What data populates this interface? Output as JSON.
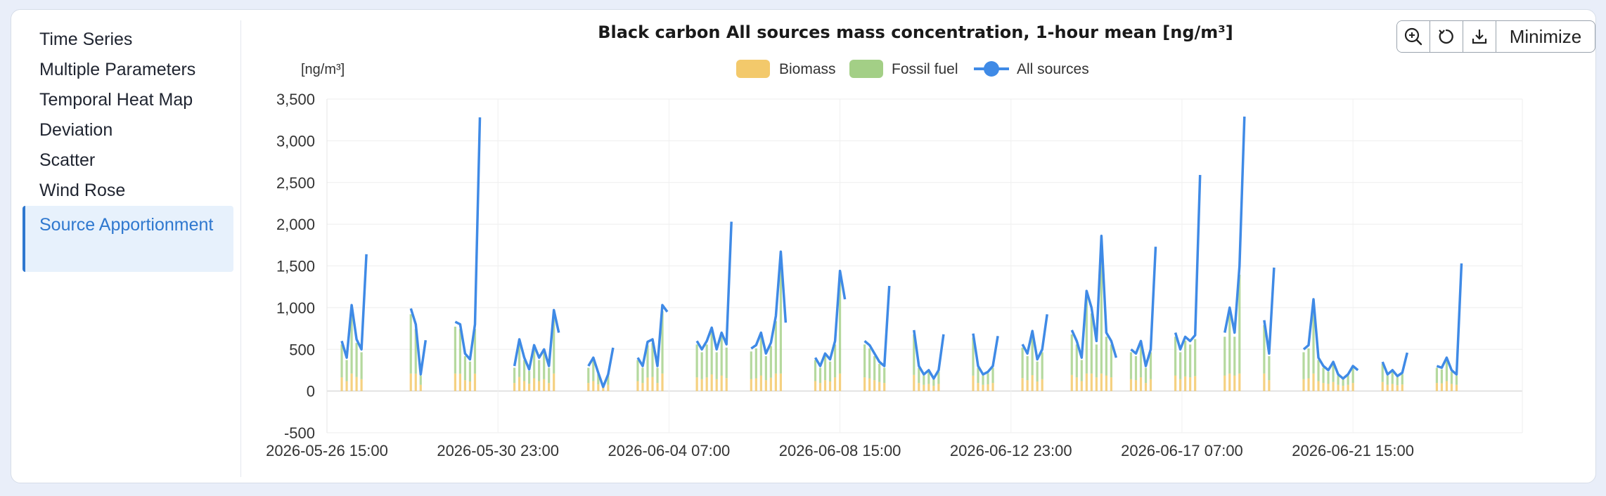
{
  "sidebar": {
    "items": [
      {
        "label": "Time Series",
        "active": false
      },
      {
        "label": "Multiple Parameters",
        "active": false
      },
      {
        "label": "Temporal Heat Map",
        "active": false
      },
      {
        "label": "Deviation",
        "active": false
      },
      {
        "label": "Scatter",
        "active": false
      },
      {
        "label": "Wind Rose",
        "active": false
      },
      {
        "label": "Source Apportionment",
        "active": true
      }
    ]
  },
  "toolbar": {
    "zoom_icon": "zoom-in-icon",
    "reset_icon": "reset-icon",
    "download_icon": "download-icon",
    "minimize_label": "Minimize"
  },
  "colors": {
    "biomass": "#f3c96b",
    "fossil": "#a3cf86",
    "all_sources": "#3f8ae6"
  },
  "chart_data": {
    "type": "bar",
    "title": "Black carbon All sources mass concentration, 1-hour mean [ng/m³]",
    "ylabel": "[ng/m³]",
    "ylim": [
      -500,
      3500
    ],
    "y_ticks": [
      3500,
      3000,
      2500,
      2000,
      1500,
      1000,
      500,
      0,
      -500
    ],
    "y_tick_labels": [
      "3,500",
      "3,000",
      "2,500",
      "2,000",
      "1,500",
      "1,000",
      "500",
      "0",
      "-500"
    ],
    "x_tick_labels": [
      "2026-05-26 15:00",
      "2026-05-30 23:00",
      "2026-06-04 07:00",
      "2026-06-08 15:00",
      "2026-06-12 23:00",
      "2026-06-17 07:00",
      "2026-06-21 15:00"
    ],
    "x_range": [
      "2026-05-26 15:00",
      "2026-06-25 22:00"
    ],
    "stacked": true,
    "grid": true,
    "legend_position": "top-center",
    "series": [
      {
        "name": "Biomass",
        "type": "bar",
        "color": "#f3c96b"
      },
      {
        "name": "Fossil fuel",
        "type": "bar",
        "color": "#a3cf86"
      },
      {
        "name": "All sources",
        "type": "line",
        "color": "#3f8ae6",
        "points": [
          [
            "2026-05-27 00:00",
            600
          ],
          [
            "2026-05-27 03:00",
            400
          ],
          [
            "2026-05-27 06:00",
            1030
          ],
          [
            "2026-05-27 09:00",
            620
          ],
          [
            "2026-05-27 12:00",
            500
          ],
          [
            "2026-05-27 15:00",
            1640
          ],
          [
            "2026-05-27 18:00",
            null
          ],
          [
            "2026-05-28 18:00",
            990
          ],
          [
            "2026-05-28 21:00",
            800
          ],
          [
            "2026-05-29 00:00",
            200
          ],
          [
            "2026-05-29 03:00",
            610
          ],
          [
            "2026-05-29 06:00",
            null
          ],
          [
            "2026-05-29 21:00",
            830
          ],
          [
            "2026-05-30 00:00",
            800
          ],
          [
            "2026-05-30 03:00",
            450
          ],
          [
            "2026-05-30 06:00",
            380
          ],
          [
            "2026-05-30 09:00",
            800
          ],
          [
            "2026-05-30 12:00",
            3280
          ],
          [
            "2026-05-30 15:00",
            null
          ],
          [
            "2026-05-31 09:00",
            300
          ],
          [
            "2026-05-31 12:00",
            620
          ],
          [
            "2026-05-31 15:00",
            400
          ],
          [
            "2026-05-31 18:00",
            260
          ],
          [
            "2026-05-31 21:00",
            550
          ],
          [
            "2026-06-01 00:00",
            400
          ],
          [
            "2026-06-01 03:00",
            500
          ],
          [
            "2026-06-01 06:00",
            300
          ],
          [
            "2026-06-01 09:00",
            970
          ],
          [
            "2026-06-01 12:00",
            700
          ],
          [
            "2026-06-01 15:00",
            null
          ],
          [
            "2026-06-02 06:00",
            300
          ],
          [
            "2026-06-02 09:00",
            400
          ],
          [
            "2026-06-02 12:00",
            220
          ],
          [
            "2026-06-02 15:00",
            50
          ],
          [
            "2026-06-02 18:00",
            200
          ],
          [
            "2026-06-02 21:00",
            520
          ],
          [
            "2026-06-03 00:00",
            null
          ],
          [
            "2026-06-03 12:00",
            400
          ],
          [
            "2026-06-03 15:00",
            300
          ],
          [
            "2026-06-03 18:00",
            590
          ],
          [
            "2026-06-03 21:00",
            620
          ],
          [
            "2026-06-04 00:00",
            300
          ],
          [
            "2026-06-04 03:00",
            1030
          ],
          [
            "2026-06-04 06:00",
            950
          ],
          [
            "2026-06-04 09:00",
            null
          ],
          [
            "2026-06-05 00:00",
            600
          ],
          [
            "2026-06-05 03:00",
            500
          ],
          [
            "2026-06-05 06:00",
            600
          ],
          [
            "2026-06-05 09:00",
            760
          ],
          [
            "2026-06-05 12:00",
            500
          ],
          [
            "2026-06-05 15:00",
            700
          ],
          [
            "2026-06-05 18:00",
            560
          ],
          [
            "2026-06-05 21:00",
            2030
          ],
          [
            "2026-06-06 00:00",
            null
          ],
          [
            "2026-06-06 09:00",
            510
          ],
          [
            "2026-06-06 12:00",
            550
          ],
          [
            "2026-06-06 15:00",
            700
          ],
          [
            "2026-06-06 18:00",
            450
          ],
          [
            "2026-06-06 21:00",
            580
          ],
          [
            "2026-06-07 00:00",
            900
          ],
          [
            "2026-06-07 03:00",
            1670
          ],
          [
            "2026-06-07 06:00",
            820
          ],
          [
            "2026-06-07 09:00",
            null
          ],
          [
            "2026-06-08 00:00",
            400
          ],
          [
            "2026-06-08 03:00",
            300
          ],
          [
            "2026-06-08 06:00",
            450
          ],
          [
            "2026-06-08 09:00",
            380
          ],
          [
            "2026-06-08 12:00",
            600
          ],
          [
            "2026-06-08 15:00",
            1440
          ],
          [
            "2026-06-08 18:00",
            1100
          ],
          [
            "2026-06-08 21:00",
            null
          ],
          [
            "2026-06-09 06:00",
            600
          ],
          [
            "2026-06-09 09:00",
            550
          ],
          [
            "2026-06-09 12:00",
            450
          ],
          [
            "2026-06-09 15:00",
            350
          ],
          [
            "2026-06-09 18:00",
            300
          ],
          [
            "2026-06-09 21:00",
            1260
          ],
          [
            "2026-06-10 00:00",
            null
          ],
          [
            "2026-06-10 12:00",
            730
          ],
          [
            "2026-06-10 15:00",
            300
          ],
          [
            "2026-06-10 18:00",
            200
          ],
          [
            "2026-06-10 21:00",
            250
          ],
          [
            "2026-06-11 00:00",
            150
          ],
          [
            "2026-06-11 03:00",
            250
          ],
          [
            "2026-06-11 06:00",
            680
          ],
          [
            "2026-06-11 09:00",
            null
          ],
          [
            "2026-06-12 00:00",
            690
          ],
          [
            "2026-06-12 03:00",
            300
          ],
          [
            "2026-06-12 06:00",
            200
          ],
          [
            "2026-06-12 09:00",
            230
          ],
          [
            "2026-06-12 12:00",
            300
          ],
          [
            "2026-06-12 15:00",
            660
          ],
          [
            "2026-06-12 18:00",
            null
          ],
          [
            "2026-06-13 06:00",
            560
          ],
          [
            "2026-06-13 09:00",
            450
          ],
          [
            "2026-06-13 12:00",
            720
          ],
          [
            "2026-06-13 15:00",
            380
          ],
          [
            "2026-06-13 18:00",
            500
          ],
          [
            "2026-06-13 21:00",
            920
          ],
          [
            "2026-06-14 00:00",
            null
          ],
          [
            "2026-06-14 12:00",
            730
          ],
          [
            "2026-06-14 15:00",
            600
          ],
          [
            "2026-06-14 18:00",
            400
          ],
          [
            "2026-06-14 21:00",
            1200
          ],
          [
            "2026-06-15 00:00",
            1000
          ],
          [
            "2026-06-15 03:00",
            600
          ],
          [
            "2026-06-15 06:00",
            1860
          ],
          [
            "2026-06-15 09:00",
            700
          ],
          [
            "2026-06-15 12:00",
            600
          ],
          [
            "2026-06-15 15:00",
            400
          ],
          [
            "2026-06-15 18:00",
            null
          ],
          [
            "2026-06-16 00:00",
            500
          ],
          [
            "2026-06-16 03:00",
            450
          ],
          [
            "2026-06-16 06:00",
            600
          ],
          [
            "2026-06-16 09:00",
            300
          ],
          [
            "2026-06-16 12:00",
            500
          ],
          [
            "2026-06-16 15:00",
            1730
          ],
          [
            "2026-06-16 18:00",
            null
          ],
          [
            "2026-06-17 03:00",
            700
          ],
          [
            "2026-06-17 06:00",
            500
          ],
          [
            "2026-06-17 09:00",
            650
          ],
          [
            "2026-06-17 12:00",
            600
          ],
          [
            "2026-06-17 15:00",
            670
          ],
          [
            "2026-06-17 18:00",
            2590
          ],
          [
            "2026-06-17 21:00",
            null
          ],
          [
            "2026-06-18 09:00",
            700
          ],
          [
            "2026-06-18 12:00",
            1000
          ],
          [
            "2026-06-18 15:00",
            700
          ],
          [
            "2026-06-18 18:00",
            1500
          ],
          [
            "2026-06-18 21:00",
            3290
          ],
          [
            "2026-06-19 00:00",
            null
          ],
          [
            "2026-06-19 09:00",
            850
          ],
          [
            "2026-06-19 12:00",
            450
          ],
          [
            "2026-06-19 15:00",
            1480
          ],
          [
            "2026-06-19 18:00",
            null
          ],
          [
            "2026-06-20 09:00",
            500
          ],
          [
            "2026-06-20 12:00",
            550
          ],
          [
            "2026-06-20 15:00",
            1100
          ],
          [
            "2026-06-20 18:00",
            400
          ],
          [
            "2026-06-20 21:00",
            300
          ],
          [
            "2026-06-21 00:00",
            250
          ],
          [
            "2026-06-21 03:00",
            350
          ],
          [
            "2026-06-21 06:00",
            200
          ],
          [
            "2026-06-21 09:00",
            150
          ],
          [
            "2026-06-21 12:00",
            200
          ],
          [
            "2026-06-21 15:00",
            300
          ],
          [
            "2026-06-21 18:00",
            250
          ],
          [
            "2026-06-21 21:00",
            null
          ],
          [
            "2026-06-22 09:00",
            350
          ],
          [
            "2026-06-22 12:00",
            200
          ],
          [
            "2026-06-22 15:00",
            250
          ],
          [
            "2026-06-22 18:00",
            180
          ],
          [
            "2026-06-22 21:00",
            220
          ],
          [
            "2026-06-23 00:00",
            460
          ],
          [
            "2026-06-23 03:00",
            null
          ],
          [
            "2026-06-23 18:00",
            300
          ],
          [
            "2026-06-23 21:00",
            280
          ],
          [
            "2026-06-24 00:00",
            400
          ],
          [
            "2026-06-24 03:00",
            250
          ],
          [
            "2026-06-24 06:00",
            200
          ],
          [
            "2026-06-24 09:00",
            1530
          ],
          [
            "2026-06-24 12:00",
            null
          ]
        ]
      }
    ]
  }
}
